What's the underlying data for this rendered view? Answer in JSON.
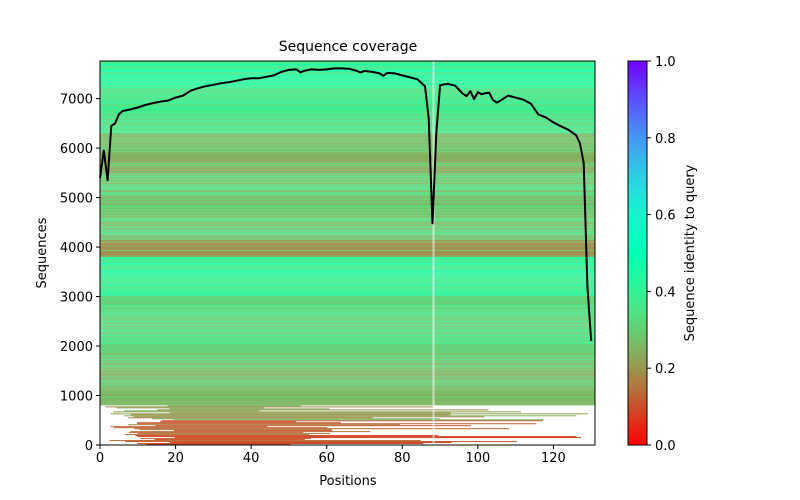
{
  "chart_data": {
    "type": "heatmap",
    "title": "Sequence coverage",
    "xlabel": "Positions",
    "ylabel": "Sequences",
    "xlim": [
      0,
      131
    ],
    "ylim": [
      0,
      7760
    ],
    "x_ticks": [
      0,
      20,
      40,
      60,
      80,
      100,
      120
    ],
    "y_ticks": [
      0,
      1000,
      2000,
      3000,
      4000,
      5000,
      6000,
      7000
    ],
    "colorbar": {
      "label": "Sequence identity to query",
      "colormap": "rainbow_r",
      "range": [
        0.0,
        1.0
      ],
      "ticks": [
        "0.0",
        "0.2",
        "0.4",
        "0.6",
        "0.8",
        "1.0"
      ]
    },
    "identity_bands": [
      {
        "from_seq": 0,
        "to_seq": 500,
        "identity": 0.12
      },
      {
        "from_seq": 500,
        "to_seq": 800,
        "identity": 0.22
      },
      {
        "from_seq": 800,
        "to_seq": 2000,
        "identity": 0.28
      },
      {
        "from_seq": 2000,
        "to_seq": 3000,
        "identity": 0.33
      },
      {
        "from_seq": 3000,
        "to_seq": 3800,
        "identity": 0.4
      },
      {
        "from_seq": 3800,
        "to_seq": 4150,
        "identity": 0.2
      },
      {
        "from_seq": 4150,
        "to_seq": 5500,
        "identity": 0.3
      },
      {
        "from_seq": 5500,
        "to_seq": 6300,
        "identity": 0.27
      },
      {
        "from_seq": 6300,
        "to_seq": 7200,
        "identity": 0.36
      },
      {
        "from_seq": 7200,
        "to_seq": 7760,
        "identity": 0.42
      }
    ],
    "series": [
      {
        "name": "coverage",
        "color": "#000000",
        "x": [
          0,
          1,
          2,
          3,
          4,
          5,
          6,
          8,
          10,
          12,
          14,
          16,
          18,
          20,
          22,
          24,
          26,
          28,
          30,
          32,
          34,
          36,
          38,
          40,
          42,
          44,
          46,
          48,
          50,
          52,
          53,
          54,
          56,
          58,
          60,
          62,
          64,
          66,
          68,
          69,
          70,
          72,
          74,
          75,
          76,
          78,
          80,
          82,
          84,
          86,
          87,
          88,
          89,
          90,
          92,
          94,
          96,
          97,
          98,
          99,
          100,
          101,
          102,
          103,
          104,
          105,
          106,
          108,
          110,
          112,
          114,
          116,
          118,
          120,
          122,
          124,
          126,
          127,
          128,
          129,
          130
        ],
        "y": [
          5400,
          5950,
          5350,
          6450,
          6500,
          6680,
          6750,
          6780,
          6820,
          6870,
          6910,
          6940,
          6960,
          7020,
          7060,
          7160,
          7210,
          7250,
          7280,
          7310,
          7330,
          7360,
          7390,
          7410,
          7410,
          7440,
          7470,
          7540,
          7580,
          7590,
          7530,
          7560,
          7590,
          7580,
          7590,
          7610,
          7610,
          7600,
          7560,
          7530,
          7560,
          7540,
          7510,
          7460,
          7520,
          7510,
          7470,
          7430,
          7390,
          7250,
          6600,
          4480,
          6300,
          7270,
          7300,
          7260,
          7100,
          7050,
          7150,
          6990,
          7130,
          7090,
          7110,
          7120,
          6970,
          6920,
          6960,
          7060,
          7020,
          6980,
          6900,
          6680,
          6620,
          6520,
          6440,
          6370,
          6260,
          6100,
          5700,
          3200,
          2100
        ]
      }
    ]
  }
}
